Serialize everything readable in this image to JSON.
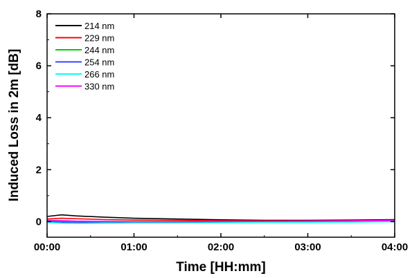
{
  "chart_data": {
    "type": "line",
    "xlabel": "Time [HH:mm]",
    "ylabel": "Induced Loss in 2m [dB]",
    "xlim": [
      0,
      240
    ],
    "ylim": [
      -0.6,
      8
    ],
    "xticks": [
      {
        "value": 0,
        "label": "00:00"
      },
      {
        "value": 60,
        "label": "01:00"
      },
      {
        "value": 120,
        "label": "02:00"
      },
      {
        "value": 180,
        "label": "03:00"
      },
      {
        "value": 240,
        "label": "04:00"
      }
    ],
    "yticks": [
      {
        "value": 0,
        "label": "0"
      },
      {
        "value": 2,
        "label": "2"
      },
      {
        "value": 4,
        "label": "4"
      },
      {
        "value": 6,
        "label": "6"
      },
      {
        "value": 8,
        "label": "8"
      }
    ],
    "legend_position": "top-left",
    "grid": false,
    "series": [
      {
        "name": "214 nm",
        "color": "#000000",
        "x": [
          0,
          10,
          20,
          40,
          60,
          90,
          120,
          150,
          180,
          210,
          240
        ],
        "values": [
          0.2,
          0.26,
          0.22,
          0.17,
          0.13,
          0.1,
          0.07,
          0.05,
          0.05,
          0.06,
          0.08
        ]
      },
      {
        "name": "229 nm",
        "color": "#ff0000",
        "x": [
          0,
          10,
          20,
          40,
          60,
          90,
          120,
          150,
          180,
          210,
          240
        ],
        "values": [
          0.1,
          0.13,
          0.11,
          0.08,
          0.06,
          0.05,
          0.04,
          0.03,
          0.03,
          0.04,
          0.06
        ]
      },
      {
        "name": "244 nm",
        "color": "#00cc00",
        "x": [
          0,
          10,
          20,
          40,
          60,
          90,
          120,
          150,
          180,
          210,
          240
        ],
        "values": [
          0.03,
          0.02,
          0.01,
          0.0,
          0.0,
          0.0,
          0.0,
          0.0,
          0.01,
          0.01,
          0.02
        ]
      },
      {
        "name": "254 nm",
        "color": "#3344ff",
        "x": [
          0,
          10,
          20,
          40,
          60,
          90,
          120,
          150,
          180,
          210,
          240
        ],
        "values": [
          0.0,
          -0.02,
          -0.03,
          -0.04,
          -0.03,
          -0.02,
          -0.02,
          -0.02,
          -0.01,
          0.0,
          0.02
        ]
      },
      {
        "name": "266 nm",
        "color": "#00ffff",
        "x": [
          0,
          10,
          20,
          40,
          60,
          90,
          120,
          150,
          180,
          210,
          240
        ],
        "values": [
          -0.03,
          -0.06,
          -0.07,
          -0.06,
          -0.05,
          -0.05,
          -0.04,
          -0.03,
          -0.03,
          -0.02,
          0.0
        ]
      },
      {
        "name": "330 nm",
        "color": "#ff00ff",
        "x": [
          0,
          10,
          20,
          40,
          60,
          90,
          120,
          150,
          180,
          210,
          240
        ],
        "values": [
          0.05,
          0.04,
          0.02,
          0.01,
          0.0,
          0.0,
          0.01,
          0.01,
          0.02,
          0.03,
          0.05
        ]
      }
    ]
  }
}
